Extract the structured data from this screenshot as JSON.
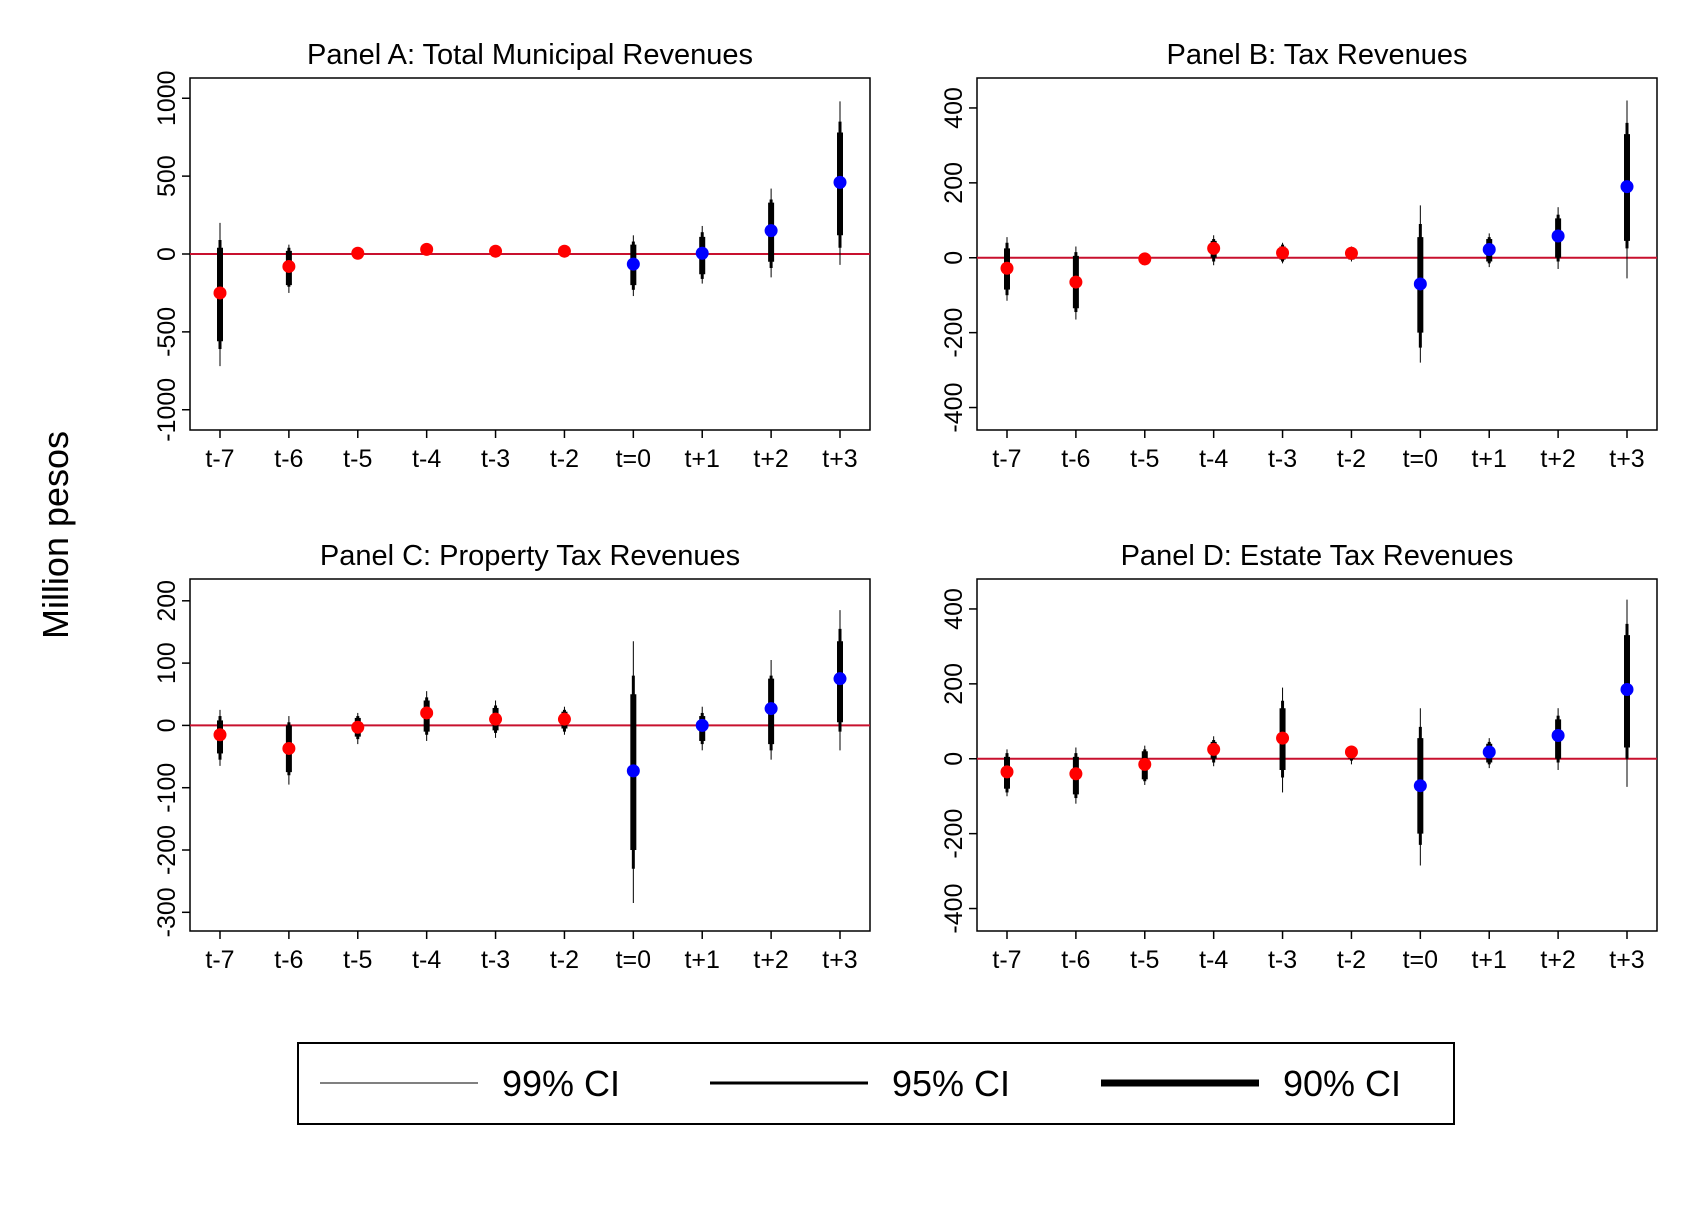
{
  "figure": {
    "ylabel": "Million pesos",
    "zero_line_color": "#c8102e",
    "pre_color": "#ff0000",
    "post_color": "#0000ff",
    "ci_color": "#000000"
  },
  "legend": {
    "items": [
      {
        "label": "99% CI",
        "weight": "thin"
      },
      {
        "label": "95% CI",
        "weight": "medium"
      },
      {
        "label": "90% CI",
        "weight": "thick"
      }
    ]
  },
  "chart_data": [
    {
      "type": "scatter",
      "title": "Panel A: Total Municipal Revenues",
      "categories": [
        "t-7",
        "t-6",
        "t-5",
        "t-4",
        "t-3",
        "t-2",
        "t=0",
        "t+1",
        "t+2",
        "t+3"
      ],
      "yticks": [
        1000,
        500,
        0,
        -500,
        -1000
      ],
      "ylim": [
        -1130,
        1130
      ],
      "period": [
        "pre",
        "pre",
        "pre",
        "pre",
        "pre",
        "pre",
        "post",
        "post",
        "post",
        "post"
      ],
      "estimates": [
        -250,
        -80,
        5,
        30,
        18,
        18,
        -65,
        5,
        150,
        460
      ],
      "ci99": [
        [
          -720,
          200
        ],
        [
          -250,
          60
        ],
        [
          0,
          10
        ],
        [
          20,
          40
        ],
        [
          10,
          26
        ],
        [
          10,
          26
        ],
        [
          -270,
          120
        ],
        [
          -190,
          180
        ],
        [
          -150,
          420
        ],
        [
          -70,
          980
        ]
      ],
      "ci95": [
        [
          -610,
          90
        ],
        [
          -210,
          40
        ],
        [
          0,
          10
        ],
        [
          20,
          40
        ],
        [
          10,
          26
        ],
        [
          10,
          26
        ],
        [
          -230,
          80
        ],
        [
          -160,
          140
        ],
        [
          -90,
          350
        ],
        [
          40,
          850
        ]
      ],
      "ci90": [
        [
          -560,
          40
        ],
        [
          -200,
          20
        ],
        [
          0,
          10
        ],
        [
          20,
          40
        ],
        [
          10,
          26
        ],
        [
          10,
          26
        ],
        [
          -200,
          60
        ],
        [
          -130,
          110
        ],
        [
          -50,
          330
        ],
        [
          120,
          780
        ]
      ]
    },
    {
      "type": "scatter",
      "title": "Panel B: Tax Revenues",
      "categories": [
        "t-7",
        "t-6",
        "t-5",
        "t-4",
        "t-3",
        "t-2",
        "t=0",
        "t+1",
        "t+2",
        "t+3"
      ],
      "yticks": [
        400,
        200,
        0,
        -200,
        -400
      ],
      "ylim": [
        -460,
        480
      ],
      "period": [
        "pre",
        "pre",
        "pre",
        "pre",
        "pre",
        "pre",
        "post",
        "post",
        "post",
        "post"
      ],
      "estimates": [
        -28,
        -65,
        -3,
        25,
        13,
        12,
        -70,
        22,
        58,
        190
      ],
      "ci99": [
        [
          -115,
          55
        ],
        [
          -165,
          30
        ],
        [
          -20,
          14
        ],
        [
          -20,
          60
        ],
        [
          -15,
          40
        ],
        [
          -10,
          30
        ],
        [
          -280,
          140
        ],
        [
          -25,
          65
        ],
        [
          -30,
          135
        ],
        [
          -55,
          420
        ]
      ],
      "ci95": [
        [
          -100,
          40
        ],
        [
          -145,
          15
        ],
        [
          -15,
          10
        ],
        [
          -10,
          50
        ],
        [
          -10,
          35
        ],
        [
          -5,
          25
        ],
        [
          -240,
          90
        ],
        [
          -15,
          55
        ],
        [
          -10,
          115
        ],
        [
          25,
          360
        ]
      ],
      "ci90": [
        [
          -85,
          25
        ],
        [
          -135,
          5
        ],
        [
          -15,
          10
        ],
        [
          0,
          45
        ],
        [
          -5,
          30
        ],
        [
          -5,
          25
        ],
        [
          -200,
          55
        ],
        [
          -10,
          50
        ],
        [
          0,
          105
        ],
        [
          45,
          330
        ]
      ]
    },
    {
      "type": "scatter",
      "title": "Panel C: Property Tax Revenues",
      "categories": [
        "t-7",
        "t-6",
        "t-5",
        "t-4",
        "t-3",
        "t-2",
        "t=0",
        "t+1",
        "t+2",
        "t+3"
      ],
      "yticks": [
        200,
        100,
        0,
        -100,
        -200,
        -300
      ],
      "ylim": [
        -330,
        235
      ],
      "period": [
        "pre",
        "pre",
        "pre",
        "pre",
        "pre",
        "pre",
        "post",
        "post",
        "post",
        "post"
      ],
      "estimates": [
        -15,
        -37,
        -3,
        20,
        10,
        10,
        -73,
        0,
        27,
        75
      ],
      "ci99": [
        [
          -65,
          25
        ],
        [
          -95,
          15
        ],
        [
          -30,
          20
        ],
        [
          -25,
          55
        ],
        [
          -20,
          40
        ],
        [
          -15,
          30
        ],
        [
          -285,
          135
        ],
        [
          -40,
          30
        ],
        [
          -55,
          105
        ],
        [
          -40,
          185
        ]
      ],
      "ci95": [
        [
          -55,
          15
        ],
        [
          -80,
          5
        ],
        [
          -22,
          15
        ],
        [
          -15,
          45
        ],
        [
          -12,
          32
        ],
        [
          -10,
          25
        ],
        [
          -230,
          80
        ],
        [
          -30,
          20
        ],
        [
          -40,
          80
        ],
        [
          -10,
          155
        ]
      ],
      "ci90": [
        [
          -45,
          8
        ],
        [
          -75,
          0
        ],
        [
          -18,
          12
        ],
        [
          -10,
          40
        ],
        [
          -8,
          28
        ],
        [
          -5,
          22
        ],
        [
          -200,
          50
        ],
        [
          -25,
          15
        ],
        [
          -30,
          75
        ],
        [
          5,
          135
        ]
      ]
    },
    {
      "type": "scatter",
      "title": "Panel D: Estate Tax Revenues",
      "categories": [
        "t-7",
        "t-6",
        "t-5",
        "t-4",
        "t-3",
        "t-2",
        "t=0",
        "t+1",
        "t+2",
        "t+3"
      ],
      "yticks": [
        400,
        200,
        0,
        -200,
        -400
      ],
      "ylim": [
        -460,
        480
      ],
      "period": [
        "pre",
        "pre",
        "pre",
        "pre",
        "pre",
        "pre",
        "post",
        "post",
        "post",
        "post"
      ],
      "estimates": [
        -35,
        -40,
        -15,
        25,
        55,
        18,
        -72,
        18,
        62,
        185
      ],
      "ci99": [
        [
          -100,
          25
        ],
        [
          -120,
          30
        ],
        [
          -70,
          35
        ],
        [
          -20,
          60
        ],
        [
          -90,
          190
        ],
        [
          -15,
          35
        ],
        [
          -285,
          135
        ],
        [
          -25,
          55
        ],
        [
          -30,
          135
        ],
        [
          -75,
          425
        ]
      ],
      "ci95": [
        [
          -90,
          15
        ],
        [
          -105,
          15
        ],
        [
          -60,
          25
        ],
        [
          -10,
          50
        ],
        [
          -50,
          155
        ],
        [
          -5,
          30
        ],
        [
          -230,
          85
        ],
        [
          -15,
          45
        ],
        [
          -10,
          115
        ],
        [
          0,
          360
        ]
      ],
      "ci90": [
        [
          -80,
          5
        ],
        [
          -95,
          5
        ],
        [
          -55,
          20
        ],
        [
          0,
          45
        ],
        [
          -30,
          135
        ],
        [
          0,
          28
        ],
        [
          -200,
          55
        ],
        [
          -10,
          40
        ],
        [
          0,
          105
        ],
        [
          30,
          330
        ]
      ]
    }
  ]
}
